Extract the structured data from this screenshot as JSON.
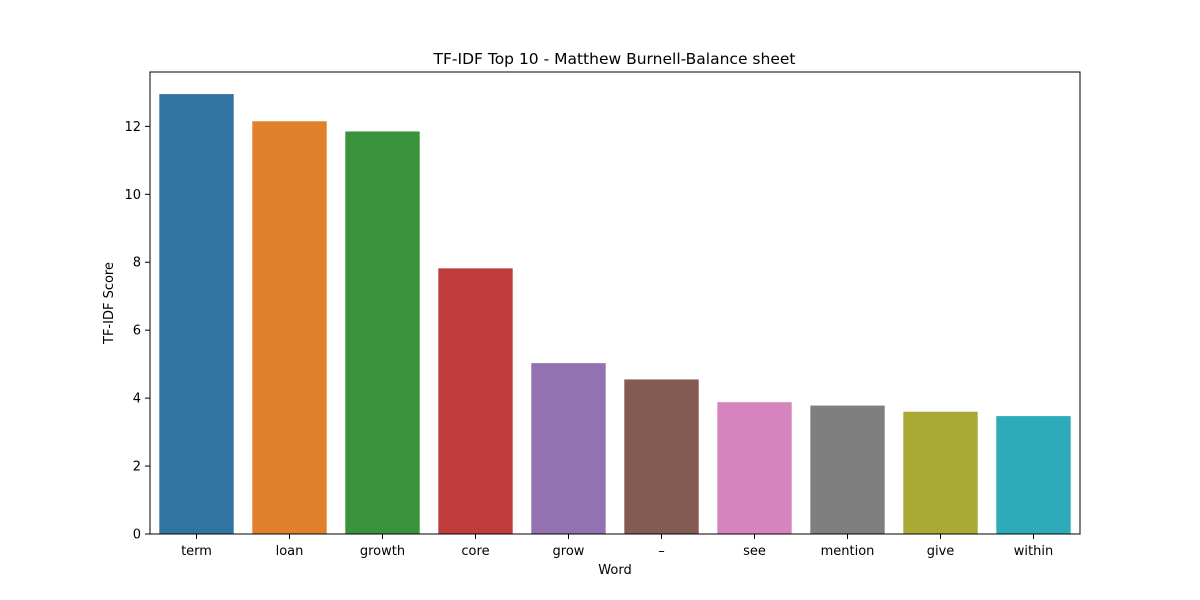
{
  "chart_data": {
    "type": "bar",
    "title": "TF-IDF Top 10 - Matthew Burnell-Balance sheet",
    "xlabel": "Word",
    "ylabel": "TF-IDF Score",
    "categories": [
      "term",
      "loan",
      "growth",
      "core",
      "grow",
      "–",
      "see",
      "mention",
      "give",
      "within"
    ],
    "values": [
      12.95,
      12.15,
      11.85,
      7.82,
      5.03,
      4.55,
      3.88,
      3.78,
      3.6,
      3.47
    ],
    "colors": [
      "#3274a1",
      "#e1812c",
      "#3a923a",
      "#c03d3e",
      "#9372b2",
      "#845b53",
      "#d684bd",
      "#7f7f7f",
      "#a9aa35",
      "#2eabb8"
    ],
    "ylim": [
      0,
      13.6
    ],
    "yticks": [
      0,
      2,
      4,
      6,
      8,
      10,
      12
    ],
    "grid": false,
    "legend": "none"
  }
}
